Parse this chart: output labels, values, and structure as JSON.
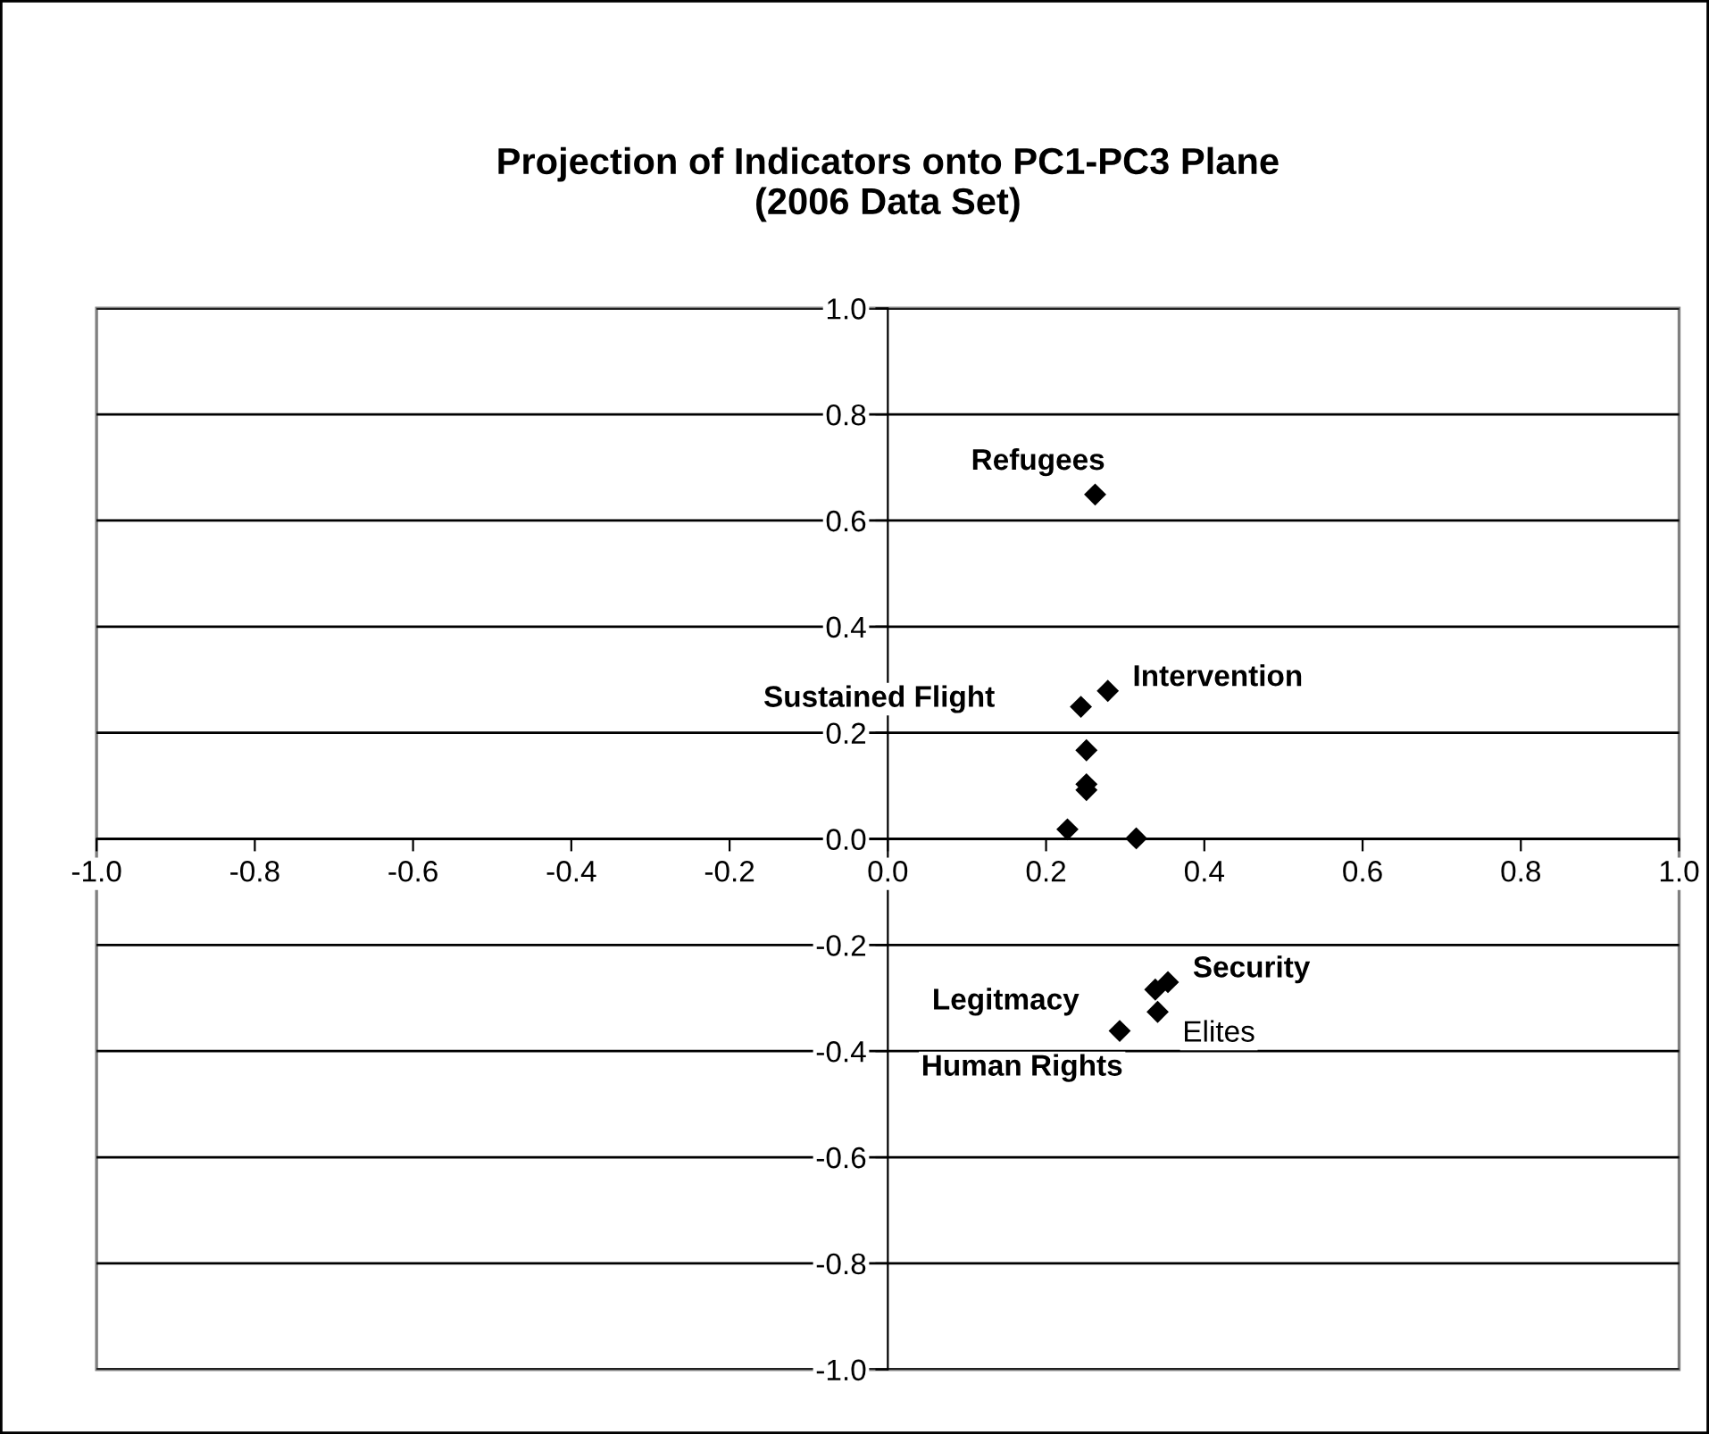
{
  "chart_data": {
    "type": "scatter",
    "title": "Projection of Indicators onto PC1-PC3 Plane\n(2006 Data Set)",
    "x": [
      0.262,
      0.278,
      0.244,
      0.251,
      0.251,
      0.251,
      0.227,
      0.314,
      0.354,
      0.338,
      0.341,
      0.293
    ],
    "values": [
      0.649,
      0.279,
      0.249,
      0.167,
      0.103,
      0.092,
      0.018,
      0.001,
      -0.27,
      -0.284,
      -0.326,
      -0.362
    ],
    "color": "#000000",
    "marker": "diamond",
    "xlim": [
      -1.0,
      1.0
    ],
    "ylim": [
      -1.0,
      1.0
    ],
    "xticks": [
      {
        "value": -1.0,
        "label": "-1.0"
      },
      {
        "value": -0.8,
        "label": "-0.8"
      },
      {
        "value": -0.6,
        "label": "-0.6"
      },
      {
        "value": -0.4,
        "label": "-0.4"
      },
      {
        "value": -0.2,
        "label": "-0.2"
      },
      {
        "value": 0,
        "label": "0.0"
      },
      {
        "value": 0.2,
        "label": "0.2"
      },
      {
        "value": 0.4,
        "label": "0.4"
      },
      {
        "value": 0.6,
        "label": "0.6"
      },
      {
        "value": 0.8,
        "label": "0.8"
      },
      {
        "value": 1.0,
        "label": "1.0"
      }
    ],
    "yticks": [
      {
        "value": -1.0,
        "label": "-1.0"
      },
      {
        "value": -0.8,
        "label": "-0.8"
      },
      {
        "value": -0.6,
        "label": "-0.6"
      },
      {
        "value": -0.4,
        "label": "-0.4"
      },
      {
        "value": -0.2,
        "label": "-0.2"
      },
      {
        "value": 0,
        "label": "0.0"
      },
      {
        "value": 0.2,
        "label": "0.2"
      },
      {
        "value": 0.4,
        "label": "0.4"
      },
      {
        "value": 0.6,
        "label": "0.6"
      },
      {
        "value": 0.8,
        "label": "0.8"
      },
      {
        "value": 1.0,
        "label": "1.0"
      }
    ],
    "grid": "y",
    "annotations": [
      {
        "text": "Refugees",
        "x": 0.262,
        "y": 0.649
      },
      {
        "text": "Intervention",
        "x": 0.278,
        "y": 0.279
      },
      {
        "text": "Sustained Flight",
        "x": 0.244,
        "y": 0.249
      },
      {
        "text": "Security",
        "x": 0.354,
        "y": -0.27
      },
      {
        "text": "Legitmacy",
        "x": 0.338,
        "y": -0.284
      },
      {
        "text": "Elites",
        "x": 0.341,
        "y": -0.326
      },
      {
        "text": "Human Rights",
        "x": 0.293,
        "y": -0.362
      }
    ]
  }
}
